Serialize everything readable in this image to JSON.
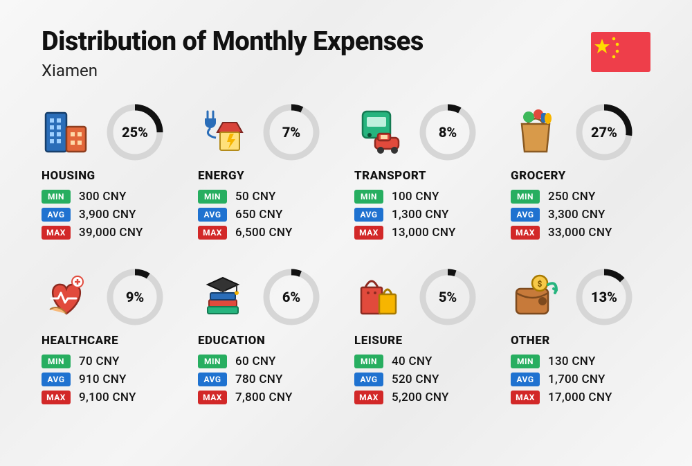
{
  "title": "Distribution of Monthly Expenses",
  "subtitle": "Xiamen",
  "flag": {
    "bg": "#ee3e4a",
    "star": "#ffde00"
  },
  "currency_suffix": "CNY",
  "colors": {
    "donut_fg": "#111111",
    "donut_bg": "#d6d6d6",
    "min_badge": "#27ae60",
    "avg_badge": "#1f72d0",
    "max_badge": "#d22828",
    "text": "#111111",
    "background_gradient": [
      "#f8f8f8",
      "#eeeeee",
      "#f5f5f5",
      "#ececec",
      "#f7f7f7"
    ]
  },
  "badge_labels": {
    "min": "MIN",
    "avg": "AVG",
    "max": "MAX"
  },
  "donut": {
    "radius": 36,
    "stroke_width": 9
  },
  "title_fontsize": 38,
  "subtitle_fontsize": 24,
  "percent_fontsize": 20,
  "category_fontsize": 17,
  "value_fontsize": 17,
  "categories": [
    {
      "key": "housing",
      "label": "HOUSING",
      "percent": 25,
      "min": "300 CNY",
      "avg": "3,900 CNY",
      "max": "39,000 CNY",
      "icon": "housing-icon"
    },
    {
      "key": "energy",
      "label": "ENERGY",
      "percent": 7,
      "min": "50 CNY",
      "avg": "650 CNY",
      "max": "6,500 CNY",
      "icon": "energy-icon"
    },
    {
      "key": "transport",
      "label": "TRANSPORT",
      "percent": 8,
      "min": "100 CNY",
      "avg": "1,300 CNY",
      "max": "13,000 CNY",
      "icon": "transport-icon"
    },
    {
      "key": "grocery",
      "label": "GROCERY",
      "percent": 27,
      "min": "250 CNY",
      "avg": "3,300 CNY",
      "max": "33,000 CNY",
      "icon": "grocery-icon"
    },
    {
      "key": "healthcare",
      "label": "HEALTHCARE",
      "percent": 9,
      "min": "70 CNY",
      "avg": "910 CNY",
      "max": "9,100 CNY",
      "icon": "healthcare-icon"
    },
    {
      "key": "education",
      "label": "EDUCATION",
      "percent": 6,
      "min": "60 CNY",
      "avg": "780 CNY",
      "max": "7,800 CNY",
      "icon": "education-icon"
    },
    {
      "key": "leisure",
      "label": "LEISURE",
      "percent": 5,
      "min": "40 CNY",
      "avg": "520 CNY",
      "max": "5,200 CNY",
      "icon": "leisure-icon"
    },
    {
      "key": "other",
      "label": "OTHER",
      "percent": 13,
      "min": "130 CNY",
      "avg": "1,700 CNY",
      "max": "17,000 CNY",
      "icon": "other-icon"
    }
  ]
}
